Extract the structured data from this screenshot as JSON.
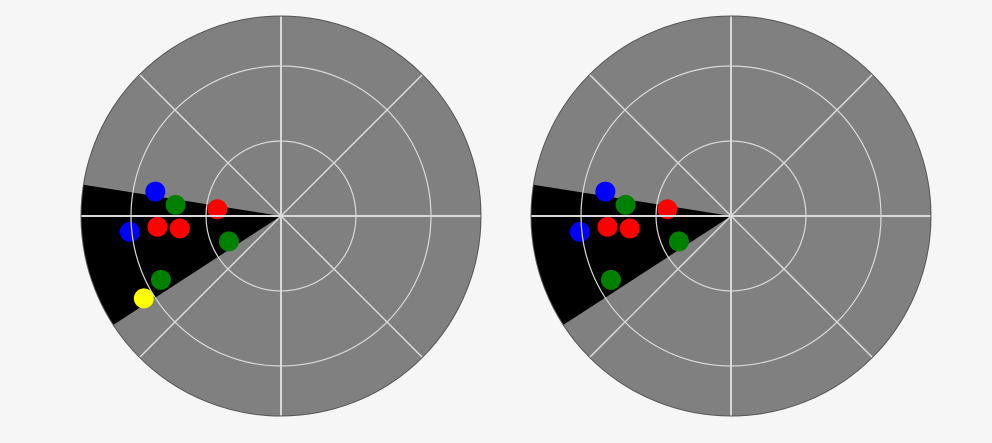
{
  "scene": {
    "background_color": "#f6f6f6",
    "disc_color": "#808080",
    "grid_color": "#d9d9d9",
    "sector_color": "#000000",
    "sector_angles_deg": [
      171,
      213
    ],
    "grid_rings": 3,
    "grid_spokes": 8
  },
  "radars": [
    {
      "name": "left-radar",
      "blips": [
        {
          "color": "#0000ff",
          "angle_deg": 169,
          "distance": 0.64
        },
        {
          "color": "#008000",
          "angle_deg": 174,
          "distance": 0.53
        },
        {
          "color": "#ff0000",
          "angle_deg": 174,
          "distance": 0.32
        },
        {
          "color": "#ff0000",
          "angle_deg": 185,
          "distance": 0.62
        },
        {
          "color": "#0000ff",
          "angle_deg": 186,
          "distance": 0.76
        },
        {
          "color": "#ff0000",
          "angle_deg": 187,
          "distance": 0.51
        },
        {
          "color": "#008000",
          "angle_deg": 206,
          "distance": 0.29
        },
        {
          "color": "#008000",
          "angle_deg": 208,
          "distance": 0.68
        },
        {
          "color": "#ffff00",
          "angle_deg": 211,
          "distance": 0.8
        }
      ]
    },
    {
      "name": "right-radar",
      "blips": [
        {
          "color": "#0000ff",
          "angle_deg": 169,
          "distance": 0.64
        },
        {
          "color": "#008000",
          "angle_deg": 174,
          "distance": 0.53
        },
        {
          "color": "#ff0000",
          "angle_deg": 174,
          "distance": 0.32
        },
        {
          "color": "#ff0000",
          "angle_deg": 185,
          "distance": 0.62
        },
        {
          "color": "#0000ff",
          "angle_deg": 186,
          "distance": 0.76
        },
        {
          "color": "#ff0000",
          "angle_deg": 187,
          "distance": 0.51
        },
        {
          "color": "#008000",
          "angle_deg": 206,
          "distance": 0.29
        },
        {
          "color": "#008000",
          "angle_deg": 208,
          "distance": 0.68
        }
      ]
    }
  ]
}
